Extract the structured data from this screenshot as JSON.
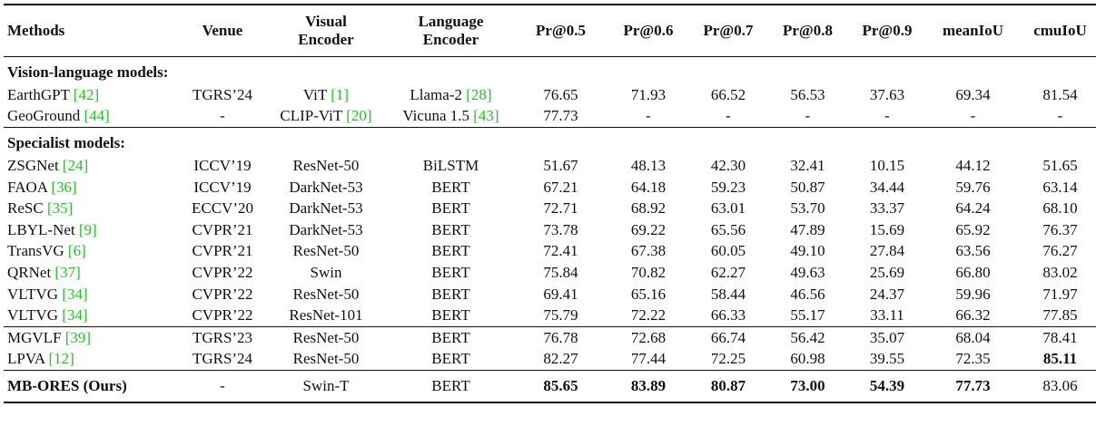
{
  "table": {
    "header": [
      "Methods",
      "Venue",
      "Visual Encoder",
      "Language Encoder",
      "Pr@0.5",
      "Pr@0.6",
      "Pr@0.7",
      "Pr@0.8",
      "Pr@0.9",
      "meanIoU",
      "cmuIoU"
    ],
    "groups": [
      {
        "title": "Vision-language models:",
        "rows": [
          [
            {
              "text": "EarthGPT",
              "cite": "[42]"
            },
            "TGRS’24",
            {
              "text": "ViT",
              "cite": "[1]"
            },
            {
              "text": "Llama-2",
              "cite": "[28]"
            },
            "76.65",
            "71.93",
            "66.52",
            "56.53",
            "37.63",
            "69.34",
            "81.54"
          ],
          [
            {
              "text": "GeoGround",
              "cite": "[44]"
            },
            "-",
            {
              "text": "CLIP-ViT",
              "cite": "[20]"
            },
            {
              "text": "Vicuna 1.5",
              "cite": "[43]"
            },
            "77.73",
            "-",
            "-",
            "-",
            "-",
            "-",
            "-"
          ]
        ]
      },
      {
        "title": "Specialist models:",
        "rows": [
          [
            {
              "text": "ZSGNet",
              "cite": "[24]"
            },
            "ICCV’19",
            "ResNet-50",
            "BiLSTM",
            "51.67",
            "48.13",
            "42.30",
            "32.41",
            "10.15",
            "44.12",
            "51.65"
          ],
          [
            {
              "text": "FAOA",
              "cite": "[36]"
            },
            "ICCV’19",
            "DarkNet-53",
            "BERT",
            "67.21",
            "64.18",
            "59.23",
            "50.87",
            "34.44",
            "59.76",
            "63.14"
          ],
          [
            {
              "text": "ReSC",
              "cite": "[35]"
            },
            "ECCV’20",
            "DarkNet-53",
            "BERT",
            "72.71",
            "68.92",
            "63.01",
            "53.70",
            "33.37",
            "64.24",
            "68.10"
          ],
          [
            {
              "text": "LBYL-Net",
              "cite": "[9]"
            },
            "CVPR’21",
            "DarkNet-53",
            "BERT",
            "73.78",
            "69.22",
            "65.56",
            "47.89",
            "15.69",
            "65.92",
            "76.37"
          ],
          [
            {
              "text": "TransVG",
              "cite": "[6]"
            },
            "CVPR’21",
            "ResNet-50",
            "BERT",
            "72.41",
            "67.38",
            "60.05",
            "49.10",
            "27.84",
            "63.56",
            "76.27"
          ],
          [
            {
              "text": "QRNet",
              "cite": "[37]"
            },
            "CVPR’22",
            "Swin",
            "BERT",
            "75.84",
            "70.82",
            "62.27",
            "49.63",
            "25.69",
            "66.80",
            "83.02"
          ],
          [
            {
              "text": "VLTVG",
              "cite": "[34]"
            },
            "CVPR’22",
            "ResNet-50",
            "BERT",
            "69.41",
            "65.16",
            "58.44",
            "46.56",
            "24.37",
            "59.96",
            "71.97"
          ],
          [
            {
              "text": "VLTVG",
              "cite": "[34]"
            },
            "CVPR’22",
            "ResNet-101",
            "BERT",
            "75.79",
            "72.22",
            "66.33",
            "55.17",
            "33.11",
            "66.32",
            "77.85"
          ]
        ]
      },
      {
        "rows": [
          [
            {
              "text": "MGVLF",
              "cite": "[39]"
            },
            "TGRS’23",
            "ResNet-50",
            "BERT",
            "76.78",
            "72.68",
            "66.74",
            "56.42",
            "35.07",
            "68.04",
            "78.41"
          ],
          [
            {
              "text": "LPVA",
              "cite": "[12]"
            },
            "TGRS’24",
            "ResNet-50",
            "BERT",
            "82.27",
            "77.44",
            "72.25",
            "60.98",
            "39.55",
            "72.35",
            {
              "text": "85.11",
              "bold": true
            }
          ]
        ]
      },
      {
        "rows": [
          [
            {
              "text": "MB-ORES (Ours)",
              "bold": true
            },
            "-",
            "Swin-T",
            "BERT",
            {
              "text": "85.65",
              "bold": true
            },
            {
              "text": "83.89",
              "bold": true
            },
            {
              "text": "80.87",
              "bold": true
            },
            {
              "text": "73.00",
              "bold": true
            },
            {
              "text": "54.39",
              "bold": true
            },
            {
              "text": "77.73",
              "bold": true
            },
            "83.06"
          ]
        ]
      }
    ]
  }
}
